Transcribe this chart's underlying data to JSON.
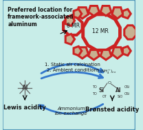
{
  "bg_color": "#c8ede8",
  "border_color": "#5599bb",
  "title_text": "Preferred location for\nframework-associated\naluminum",
  "label_8mr": "8 MR",
  "label_12mr": "12 MR",
  "arrow1_text": "1. Static air calcination",
  "arrow2_text": "2. Ambient conditions",
  "arrow3_text": "Ammonium\nIon-exchange",
  "lewis_text": "Lewis acidity",
  "bronsted_text": "Brønsted acidity",
  "ring_red": "#cc2222",
  "ring_tan": "#c8b090",
  "arrow_blue": "#3377cc",
  "text_color": "#111111",
  "font_size": 5.5
}
